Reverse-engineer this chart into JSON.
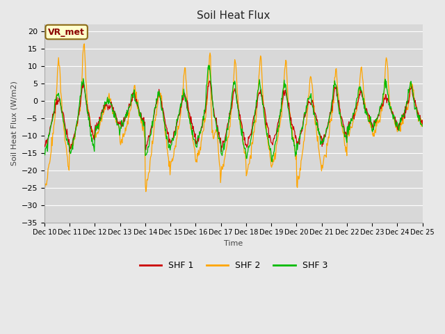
{
  "title": "Soil Heat Flux",
  "ylabel": "Soil Heat Flux (W/m2)",
  "xlabel": "Time",
  "ylim": [
    -35,
    22
  ],
  "yticks": [
    -35,
    -30,
    -25,
    -20,
    -15,
    -10,
    -5,
    0,
    5,
    10,
    15,
    20
  ],
  "fig_bg_color": "#e8e8e8",
  "plot_bg_color": "#d8d8d8",
  "colors": {
    "SHF 1": "#cc0000",
    "SHF 2": "#ffa500",
    "SHF 3": "#00bb00"
  },
  "annotation": "VR_met",
  "annotation_color": "#8b0000",
  "annotation_bg": "#ffffcc",
  "annotation_edge": "#8b6914",
  "x_tick_labels": [
    "Dec 10",
    "Dec 11",
    "Dec 12",
    "Dec 13",
    "Dec 14",
    "Dec 15",
    "Dec 16",
    "Dec 17",
    "Dec 18",
    "Dec 19",
    "Dec 20",
    "Dec 21",
    "Dec 22",
    "Dec 23",
    "Dec 24",
    "Dec 25"
  ],
  "grid_color": "#ffffff",
  "spine_color": "#aaaaaa"
}
